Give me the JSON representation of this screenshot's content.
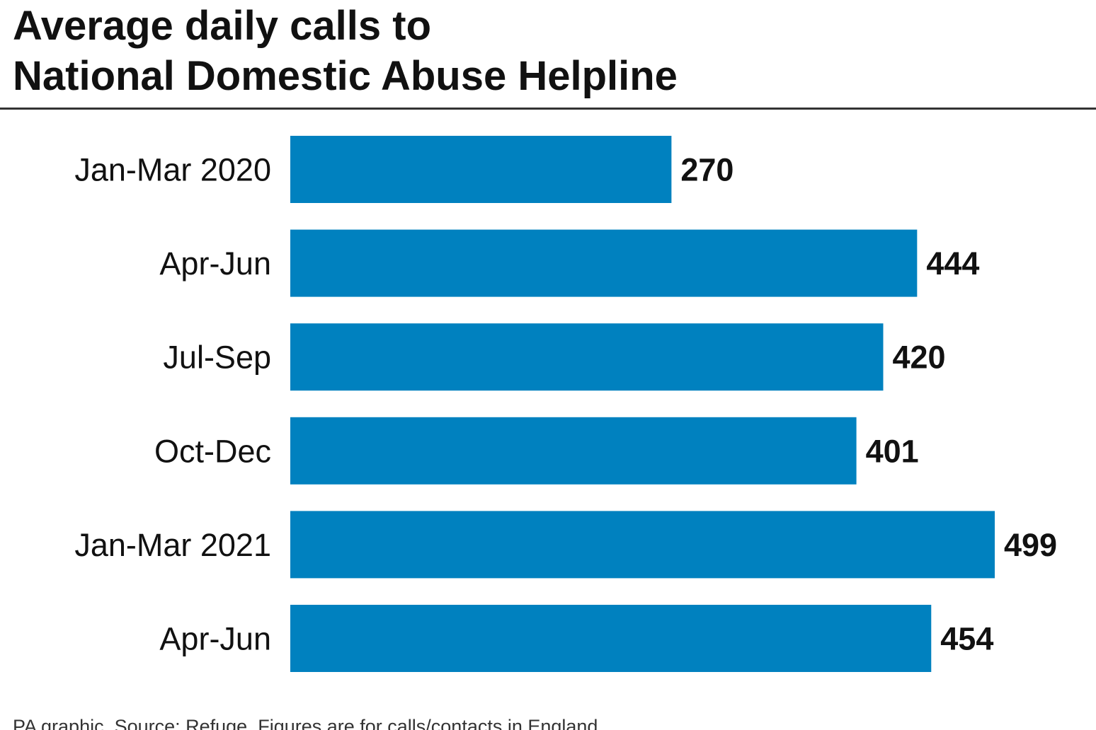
{
  "chart_data": {
    "type": "bar",
    "orientation": "horizontal",
    "title": [
      "Average daily calls to",
      "National Domestic Abuse Helpline"
    ],
    "categories": [
      "Jan-Mar 2020",
      "Apr-Jun",
      "Jul-Sep",
      "Oct-Dec",
      "Jan-Mar 2021",
      "Apr-Jun"
    ],
    "values": [
      270,
      444,
      420,
      401,
      499,
      454
    ],
    "color": "#0081bf",
    "source": "PA graphic. Source: Refuge. Figures are for calls/contacts in England"
  }
}
